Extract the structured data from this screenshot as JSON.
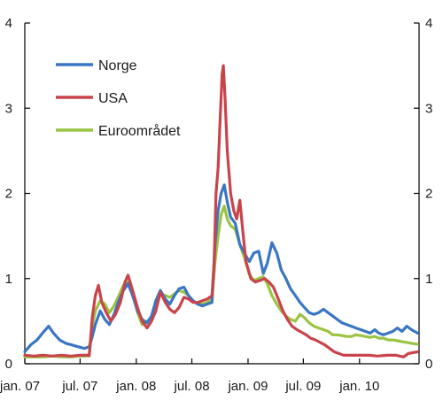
{
  "chart_data": {
    "type": "line",
    "title": "",
    "xlabel": "",
    "ylabel": "",
    "ylim": [
      0,
      4
    ],
    "xlim": [
      "2007-01-01",
      "2010-07-15"
    ],
    "y_ticks": [
      "0",
      "1",
      "2",
      "3",
      "4"
    ],
    "y_ticks_right": [
      "0",
      "1",
      "2",
      "3",
      "4"
    ],
    "x_ticks": [
      {
        "label": "jan. 07",
        "date": "2007-01-01"
      },
      {
        "label": "jul. 07",
        "date": "2007-07-01"
      },
      {
        "label": "jan. 08",
        "date": "2008-01-01"
      },
      {
        "label": "jul. 08",
        "date": "2008-07-01"
      },
      {
        "label": "jan. 09",
        "date": "2009-01-01"
      },
      {
        "label": "jul. 09",
        "date": "2009-07-01"
      },
      {
        "label": "jan. 10",
        "date": "2010-01-01"
      }
    ],
    "grid": false,
    "legend_position": "top-left",
    "series": [
      {
        "name": "Norge",
        "color": "#3a76c4",
        "points": [
          [
            "2007-01-01",
            0.14
          ],
          [
            "2007-01-20",
            0.22
          ],
          [
            "2007-02-10",
            0.28
          ],
          [
            "2007-03-05",
            0.38
          ],
          [
            "2007-03-20",
            0.44
          ],
          [
            "2007-04-05",
            0.36
          ],
          [
            "2007-04-25",
            0.28
          ],
          [
            "2007-05-15",
            0.24
          ],
          [
            "2007-06-05",
            0.22
          ],
          [
            "2007-06-25",
            0.2
          ],
          [
            "2007-07-15",
            0.18
          ],
          [
            "2007-07-31",
            0.2
          ],
          [
            "2007-08-10",
            0.32
          ],
          [
            "2007-08-20",
            0.46
          ],
          [
            "2007-09-05",
            0.62
          ],
          [
            "2007-09-20",
            0.52
          ],
          [
            "2007-10-05",
            0.46
          ],
          [
            "2007-10-20",
            0.58
          ],
          [
            "2007-11-05",
            0.74
          ],
          [
            "2007-11-20",
            0.86
          ],
          [
            "2007-12-05",
            0.94
          ],
          [
            "2007-12-20",
            0.8
          ],
          [
            "2008-01-05",
            0.62
          ],
          [
            "2008-01-20",
            0.52
          ],
          [
            "2008-02-05",
            0.48
          ],
          [
            "2008-02-20",
            0.56
          ],
          [
            "2008-03-05",
            0.74
          ],
          [
            "2008-03-20",
            0.86
          ],
          [
            "2008-04-05",
            0.76
          ],
          [
            "2008-04-20",
            0.7
          ],
          [
            "2008-05-05",
            0.8
          ],
          [
            "2008-05-20",
            0.88
          ],
          [
            "2008-06-05",
            0.9
          ],
          [
            "2008-06-20",
            0.8
          ],
          [
            "2008-07-05",
            0.74
          ],
          [
            "2008-07-20",
            0.7
          ],
          [
            "2008-08-05",
            0.68
          ],
          [
            "2008-08-20",
            0.7
          ],
          [
            "2008-09-05",
            0.72
          ],
          [
            "2008-09-15",
            1.4
          ],
          [
            "2008-09-25",
            1.8
          ],
          [
            "2008-10-05",
            2.0
          ],
          [
            "2008-10-15",
            2.1
          ],
          [
            "2008-10-25",
            1.9
          ],
          [
            "2008-11-05",
            1.72
          ],
          [
            "2008-11-20",
            1.65
          ],
          [
            "2008-12-05",
            1.4
          ],
          [
            "2008-12-20",
            1.3
          ],
          [
            "2009-01-05",
            1.2
          ],
          [
            "2009-01-20",
            1.3
          ],
          [
            "2009-02-05",
            1.32
          ],
          [
            "2009-02-20",
            1.06
          ],
          [
            "2009-03-05",
            1.18
          ],
          [
            "2009-03-20",
            1.42
          ],
          [
            "2009-04-05",
            1.3
          ],
          [
            "2009-04-20",
            1.1
          ],
          [
            "2009-05-05",
            1.0
          ],
          [
            "2009-05-20",
            0.88
          ],
          [
            "2009-06-05",
            0.8
          ],
          [
            "2009-06-20",
            0.72
          ],
          [
            "2009-07-05",
            0.66
          ],
          [
            "2009-07-20",
            0.6
          ],
          [
            "2009-08-05",
            0.58
          ],
          [
            "2009-08-20",
            0.6
          ],
          [
            "2009-09-05",
            0.64
          ],
          [
            "2009-09-20",
            0.6
          ],
          [
            "2009-10-05",
            0.56
          ],
          [
            "2009-10-20",
            0.52
          ],
          [
            "2009-11-05",
            0.48
          ],
          [
            "2009-11-20",
            0.46
          ],
          [
            "2009-12-05",
            0.44
          ],
          [
            "2009-12-20",
            0.42
          ],
          [
            "2010-01-05",
            0.4
          ],
          [
            "2010-01-20",
            0.38
          ],
          [
            "2010-02-05",
            0.36
          ],
          [
            "2010-02-20",
            0.4
          ],
          [
            "2010-03-05",
            0.36
          ],
          [
            "2010-03-20",
            0.34
          ],
          [
            "2010-04-05",
            0.36
          ],
          [
            "2010-04-20",
            0.38
          ],
          [
            "2010-05-05",
            0.42
          ],
          [
            "2010-05-20",
            0.38
          ],
          [
            "2010-06-05",
            0.44
          ],
          [
            "2010-06-20",
            0.4
          ],
          [
            "2010-07-10",
            0.36
          ]
        ]
      },
      {
        "name": "USA",
        "color": "#c9444a",
        "points": [
          [
            "2007-01-01",
            0.1
          ],
          [
            "2007-02-01",
            0.09
          ],
          [
            "2007-03-01",
            0.1
          ],
          [
            "2007-04-01",
            0.09
          ],
          [
            "2007-05-01",
            0.1
          ],
          [
            "2007-06-01",
            0.09
          ],
          [
            "2007-07-01",
            0.1
          ],
          [
            "2007-07-31",
            0.1
          ],
          [
            "2007-08-10",
            0.55
          ],
          [
            "2007-08-20",
            0.8
          ],
          [
            "2007-08-30",
            0.92
          ],
          [
            "2007-09-10",
            0.72
          ],
          [
            "2007-09-25",
            0.6
          ],
          [
            "2007-10-10",
            0.5
          ],
          [
            "2007-10-25",
            0.58
          ],
          [
            "2007-11-10",
            0.72
          ],
          [
            "2007-11-25",
            0.96
          ],
          [
            "2007-12-05",
            1.04
          ],
          [
            "2007-12-20",
            0.86
          ],
          [
            "2008-01-05",
            0.66
          ],
          [
            "2008-01-20",
            0.5
          ],
          [
            "2008-02-05",
            0.42
          ],
          [
            "2008-02-20",
            0.5
          ],
          [
            "2008-03-05",
            0.62
          ],
          [
            "2008-03-20",
            0.84
          ],
          [
            "2008-04-05",
            0.72
          ],
          [
            "2008-04-20",
            0.64
          ],
          [
            "2008-05-05",
            0.6
          ],
          [
            "2008-05-20",
            0.66
          ],
          [
            "2008-06-05",
            0.78
          ],
          [
            "2008-06-20",
            0.76
          ],
          [
            "2008-07-05",
            0.72
          ],
          [
            "2008-07-20",
            0.72
          ],
          [
            "2008-08-05",
            0.74
          ],
          [
            "2008-08-20",
            0.76
          ],
          [
            "2008-09-05",
            0.8
          ],
          [
            "2008-09-12",
            1.2
          ],
          [
            "2008-09-18",
            2.0
          ],
          [
            "2008-09-25",
            2.3
          ],
          [
            "2008-10-02",
            2.9
          ],
          [
            "2008-10-08",
            3.4
          ],
          [
            "2008-10-12",
            3.5
          ],
          [
            "2008-10-18",
            3.1
          ],
          [
            "2008-10-25",
            2.5
          ],
          [
            "2008-11-05",
            2.0
          ],
          [
            "2008-11-15",
            1.8
          ],
          [
            "2008-11-25",
            1.7
          ],
          [
            "2008-12-05",
            1.92
          ],
          [
            "2008-12-15",
            1.55
          ],
          [
            "2008-12-25",
            1.2
          ],
          [
            "2009-01-10",
            1.0
          ],
          [
            "2009-01-25",
            0.96
          ],
          [
            "2009-02-10",
            0.98
          ],
          [
            "2009-02-25",
            1.0
          ],
          [
            "2009-03-10",
            0.96
          ],
          [
            "2009-03-25",
            0.9
          ],
          [
            "2009-04-10",
            0.76
          ],
          [
            "2009-04-25",
            0.62
          ],
          [
            "2009-05-10",
            0.52
          ],
          [
            "2009-05-25",
            0.44
          ],
          [
            "2009-06-10",
            0.4
          ],
          [
            "2009-06-25",
            0.37
          ],
          [
            "2009-07-10",
            0.34
          ],
          [
            "2009-07-25",
            0.3
          ],
          [
            "2009-08-10",
            0.28
          ],
          [
            "2009-08-25",
            0.25
          ],
          [
            "2009-09-10",
            0.22
          ],
          [
            "2009-09-25",
            0.18
          ],
          [
            "2009-10-10",
            0.14
          ],
          [
            "2009-10-25",
            0.12
          ],
          [
            "2009-11-10",
            0.1
          ],
          [
            "2009-12-01",
            0.1
          ],
          [
            "2010-01-01",
            0.1
          ],
          [
            "2010-02-01",
            0.1
          ],
          [
            "2010-03-01",
            0.09
          ],
          [
            "2010-04-01",
            0.1
          ],
          [
            "2010-05-01",
            0.1
          ],
          [
            "2010-05-25",
            0.08
          ],
          [
            "2010-06-10",
            0.12
          ],
          [
            "2010-07-10",
            0.14
          ]
        ]
      },
      {
        "name": "Euroområdet",
        "color": "#9ac443",
        "points": [
          [
            "2007-01-01",
            0.08
          ],
          [
            "2007-02-01",
            0.08
          ],
          [
            "2007-03-01",
            0.08
          ],
          [
            "2007-04-01",
            0.09
          ],
          [
            "2007-05-01",
            0.08
          ],
          [
            "2007-06-01",
            0.08
          ],
          [
            "2007-07-01",
            0.09
          ],
          [
            "2007-07-31",
            0.09
          ],
          [
            "2007-08-10",
            0.45
          ],
          [
            "2007-08-20",
            0.62
          ],
          [
            "2007-09-05",
            0.74
          ],
          [
            "2007-09-20",
            0.7
          ],
          [
            "2007-10-05",
            0.6
          ],
          [
            "2007-10-20",
            0.68
          ],
          [
            "2007-11-05",
            0.8
          ],
          [
            "2007-11-20",
            0.92
          ],
          [
            "2007-12-05",
            0.96
          ],
          [
            "2007-12-20",
            0.86
          ],
          [
            "2008-01-05",
            0.6
          ],
          [
            "2008-01-20",
            0.46
          ],
          [
            "2008-02-05",
            0.5
          ],
          [
            "2008-02-20",
            0.52
          ],
          [
            "2008-03-05",
            0.66
          ],
          [
            "2008-03-20",
            0.82
          ],
          [
            "2008-04-05",
            0.8
          ],
          [
            "2008-04-20",
            0.78
          ],
          [
            "2008-05-05",
            0.82
          ],
          [
            "2008-05-20",
            0.86
          ],
          [
            "2008-06-05",
            0.84
          ],
          [
            "2008-06-20",
            0.8
          ],
          [
            "2008-07-05",
            0.74
          ],
          [
            "2008-07-20",
            0.7
          ],
          [
            "2008-08-05",
            0.7
          ],
          [
            "2008-08-20",
            0.72
          ],
          [
            "2008-09-05",
            0.76
          ],
          [
            "2008-09-15",
            1.2
          ],
          [
            "2008-09-25",
            1.5
          ],
          [
            "2008-10-05",
            1.75
          ],
          [
            "2008-10-15",
            1.85
          ],
          [
            "2008-10-25",
            1.7
          ],
          [
            "2008-11-05",
            1.62
          ],
          [
            "2008-11-20",
            1.58
          ],
          [
            "2008-12-05",
            1.4
          ],
          [
            "2008-12-20",
            1.25
          ],
          [
            "2009-01-05",
            1.05
          ],
          [
            "2009-01-20",
            0.98
          ],
          [
            "2009-02-05",
            1.0
          ],
          [
            "2009-02-20",
            1.02
          ],
          [
            "2009-03-05",
            0.94
          ],
          [
            "2009-03-20",
            0.8
          ],
          [
            "2009-04-05",
            0.7
          ],
          [
            "2009-04-20",
            0.62
          ],
          [
            "2009-05-05",
            0.56
          ],
          [
            "2009-05-20",
            0.52
          ],
          [
            "2009-06-05",
            0.5
          ],
          [
            "2009-06-20",
            0.58
          ],
          [
            "2009-07-05",
            0.54
          ],
          [
            "2009-07-20",
            0.48
          ],
          [
            "2009-08-05",
            0.44
          ],
          [
            "2009-08-20",
            0.42
          ],
          [
            "2009-09-05",
            0.4
          ],
          [
            "2009-09-20",
            0.38
          ],
          [
            "2009-10-05",
            0.34
          ],
          [
            "2009-10-20",
            0.34
          ],
          [
            "2009-11-05",
            0.33
          ],
          [
            "2009-11-20",
            0.32
          ],
          [
            "2009-12-05",
            0.32
          ],
          [
            "2009-12-20",
            0.34
          ],
          [
            "2010-01-05",
            0.33
          ],
          [
            "2010-01-20",
            0.32
          ],
          [
            "2010-02-05",
            0.31
          ],
          [
            "2010-02-20",
            0.32
          ],
          [
            "2010-03-05",
            0.3
          ],
          [
            "2010-03-20",
            0.3
          ],
          [
            "2010-04-05",
            0.28
          ],
          [
            "2010-04-20",
            0.28
          ],
          [
            "2010-05-05",
            0.27
          ],
          [
            "2010-05-20",
            0.26
          ],
          [
            "2010-06-05",
            0.25
          ],
          [
            "2010-06-20",
            0.24
          ],
          [
            "2010-07-10",
            0.23
          ]
        ]
      }
    ]
  }
}
